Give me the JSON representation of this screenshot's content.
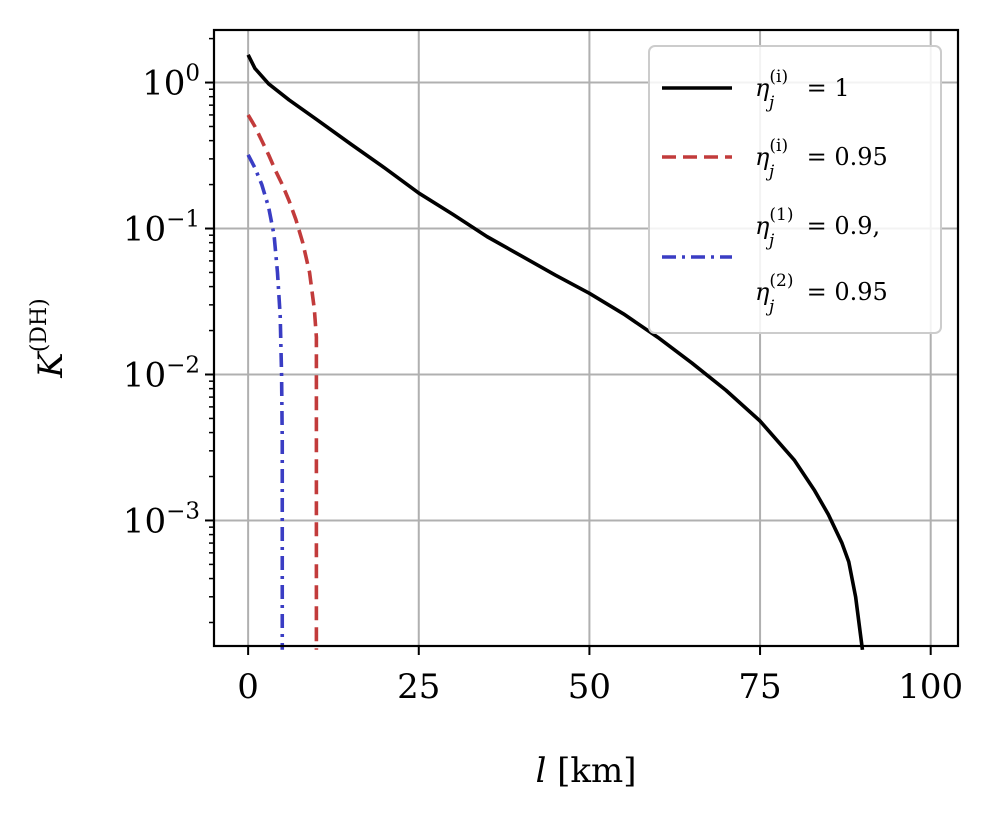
{
  "chart_data": {
    "type": "line",
    "xlabel": {
      "var": "l",
      "unit": "[km]"
    },
    "ylabel": {
      "main": "K",
      "sup": "(DH)"
    },
    "xlim": [
      -5,
      104
    ],
    "ylim_log10": [
      -3.86,
      0.36
    ],
    "y_scale": "log",
    "grid": true,
    "legend_position": "top-right",
    "x_ticks": [
      {
        "value": 0,
        "label": "0"
      },
      {
        "value": 25,
        "label": "25"
      },
      {
        "value": 50,
        "label": "50"
      },
      {
        "value": 75,
        "label": "75"
      },
      {
        "value": 100,
        "label": "100"
      }
    ],
    "y_ticks": [
      {
        "exp": 0,
        "base": "10",
        "sup": "0"
      },
      {
        "exp": -1,
        "base": "10",
        "sup": "−1"
      },
      {
        "exp": -2,
        "base": "10",
        "sup": "−2"
      },
      {
        "exp": -3,
        "base": "10",
        "sup": "−3"
      }
    ],
    "series": [
      {
        "name": "η_j^(i) = 1",
        "color": "#000000",
        "dash": "solid",
        "points": [
          [
            0,
            1.55
          ],
          [
            1,
            1.25
          ],
          [
            3,
            0.98
          ],
          [
            6,
            0.76
          ],
          [
            10,
            0.56
          ],
          [
            15,
            0.38
          ],
          [
            20,
            0.26
          ],
          [
            25,
            0.175
          ],
          [
            30,
            0.125
          ],
          [
            35,
            0.088
          ],
          [
            40,
            0.065
          ],
          [
            45,
            0.048
          ],
          [
            50,
            0.036
          ],
          [
            55,
            0.026
          ],
          [
            60,
            0.018
          ],
          [
            65,
            0.012
          ],
          [
            70,
            0.0078
          ],
          [
            75,
            0.0048
          ],
          [
            80,
            0.0026
          ],
          [
            83,
            0.0016
          ],
          [
            85,
            0.0011
          ],
          [
            87,
            0.0007
          ],
          [
            88,
            0.00052
          ],
          [
            89,
            0.0003
          ],
          [
            90,
            0.00013
          ]
        ]
      },
      {
        "name": "η_j^(i) = 0.95",
        "color": "#c23b3b",
        "dash": "dashed",
        "points": [
          [
            0,
            0.6
          ],
          [
            1,
            0.5
          ],
          [
            2,
            0.4
          ],
          [
            3,
            0.32
          ],
          [
            4,
            0.25
          ],
          [
            5,
            0.2
          ],
          [
            6,
            0.155
          ],
          [
            7,
            0.115
          ],
          [
            8,
            0.08
          ],
          [
            9,
            0.05
          ],
          [
            9.7,
            0.028
          ],
          [
            10,
            0.018
          ],
          [
            10,
            0.00013
          ]
        ]
      },
      {
        "name": "η_j^(1) = 0.9, η_j^(2) = 0.95",
        "color": "#3a3dc4",
        "dash": "dashdot",
        "points": [
          [
            0,
            0.32
          ],
          [
            1,
            0.26
          ],
          [
            2,
            0.2
          ],
          [
            3,
            0.14
          ],
          [
            3.8,
            0.09
          ],
          [
            4.3,
            0.05
          ],
          [
            4.7,
            0.025
          ],
          [
            4.9,
            0.01
          ],
          [
            5,
            0.0035
          ],
          [
            5,
            0.00013
          ]
        ]
      }
    ],
    "legend": [
      {
        "sym": "η",
        "sub": "j",
        "sup": "(i)",
        "rest": " = 1"
      },
      {
        "sym": "η",
        "sub": "j",
        "sup": "(i)",
        "rest": " = 0.95"
      },
      {
        "sym": "η",
        "sub": "j",
        "sup": "(1)",
        "rest": " = 0.9,",
        "sym2": "η",
        "sub2": "j",
        "sup2": "(2)",
        "rest2": " = 0.95"
      }
    ]
  }
}
